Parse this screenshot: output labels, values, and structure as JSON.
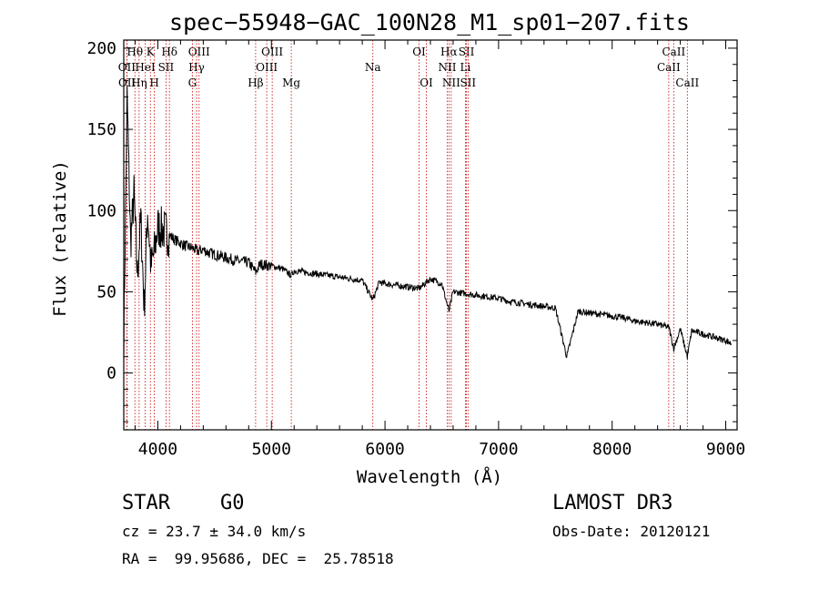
{
  "chart_data": {
    "type": "line",
    "title": "spec−55948−GAC_100N28_M1_sp01−207.fits",
    "xlabel": "Wavelength (Å)",
    "ylabel": "Flux (relative)",
    "xlim": [
      3700,
      9100
    ],
    "ylim": [
      -35,
      205
    ],
    "xticks": [
      4000,
      5000,
      6000,
      7000,
      8000,
      9000
    ],
    "yticks": [
      0,
      50,
      100,
      150,
      200
    ],
    "series": [
      {
        "name": "flux",
        "x": [
          3700,
          3730,
          3760,
          3790,
          3820,
          3850,
          3880,
          3910,
          3940,
          3970,
          4000,
          4050,
          4100,
          4150,
          4200,
          4250,
          4300,
          4350,
          4400,
          4450,
          4500,
          4600,
          4700,
          4800,
          4862,
          4900,
          5000,
          5100,
          5175,
          5200,
          5300,
          5400,
          5500,
          5600,
          5700,
          5800,
          5893,
          5950,
          6000,
          6100,
          6200,
          6300,
          6400,
          6500,
          6563,
          6600,
          6700,
          6800,
          6900,
          7000,
          7100,
          7200,
          7300,
          7400,
          7500,
          7600,
          7700,
          7800,
          7900,
          8000,
          8100,
          8200,
          8300,
          8400,
          8500,
          8542,
          8600,
          8662,
          8700,
          8800,
          8900,
          9000,
          9050
        ],
        "values": [
          20,
          170,
          80,
          110,
          60,
          95,
          40,
          100,
          65,
          75,
          90,
          88,
          85,
          82,
          80,
          78,
          77,
          75,
          76,
          74,
          73,
          71,
          69,
          68,
          62,
          67,
          66,
          64,
          60,
          63,
          62,
          61,
          60,
          59,
          58,
          57,
          45,
          56,
          55,
          54,
          53,
          52,
          58,
          55,
          38,
          50,
          49,
          48,
          47,
          46,
          44,
          43,
          42,
          41,
          40,
          10,
          38,
          37,
          36,
          35,
          34,
          32,
          31,
          30,
          28,
          15,
          27,
          10,
          26,
          24,
          22,
          20,
          18
        ]
      }
    ],
    "lines": [
      {
        "label": "Hθ",
        "wavelength": 3798,
        "row": 1
      },
      {
        "label": "OII",
        "wavelength": 3727,
        "row": 2
      },
      {
        "label": "OII",
        "wavelength": 3729,
        "row": 3
      },
      {
        "label": "Hη",
        "wavelength": 3835,
        "row": 3
      },
      {
        "label": "K",
        "wavelength": 3934,
        "row": 1
      },
      {
        "label": "HeI",
        "wavelength": 3889,
        "row": 2
      },
      {
        "label": "H",
        "wavelength": 3969,
        "row": 3
      },
      {
        "label": "Hδ",
        "wavelength": 4102,
        "row": 1
      },
      {
        "label": "SII",
        "wavelength": 4072,
        "row": 2
      },
      {
        "label": "OIII",
        "wavelength": 4363,
        "row": 1
      },
      {
        "label": "Hγ",
        "wavelength": 4341,
        "row": 2
      },
      {
        "label": "G",
        "wavelength": 4304,
        "row": 3
      },
      {
        "label": "Hβ",
        "wavelength": 4861,
        "row": 3
      },
      {
        "label": "OIII",
        "wavelength": 5007,
        "row": 1
      },
      {
        "label": "OIII",
        "wavelength": 4959,
        "row": 2
      },
      {
        "label": "Mg",
        "wavelength": 5175,
        "row": 3
      },
      {
        "label": "Na",
        "wavelength": 5893,
        "row": 2
      },
      {
        "label": "OI",
        "wavelength": 6300,
        "row": 1
      },
      {
        "label": "OI",
        "wavelength": 6364,
        "row": 3
      },
      {
        "label": "Hα",
        "wavelength": 6563,
        "row": 1
      },
      {
        "label": "NII",
        "wavelength": 6548,
        "row": 2
      },
      {
        "label": "NII",
        "wavelength": 6583,
        "row": 3
      },
      {
        "label": "SII",
        "wavelength": 6717,
        "row": 1
      },
      {
        "label": "Li",
        "wavelength": 6708,
        "row": 2
      },
      {
        "label": "SII",
        "wavelength": 6731,
        "row": 3
      },
      {
        "label": "CaII",
        "wavelength": 8542,
        "row": 1
      },
      {
        "label": "CaII",
        "wavelength": 8498,
        "row": 2
      },
      {
        "label": "CaII",
        "wavelength": 8662,
        "row": 3
      }
    ]
  },
  "info": {
    "class": "STAR",
    "subclass": "G0",
    "survey": "LAMOST DR3",
    "cz": "cz = 23.7 ± 34.0 km/s",
    "obs_date": "Obs-Date: 20120121",
    "coords": "RA =  99.95686, DEC =  25.78518"
  },
  "colors": {
    "spectrum": "#000000",
    "line_markers": "#cc0000"
  }
}
